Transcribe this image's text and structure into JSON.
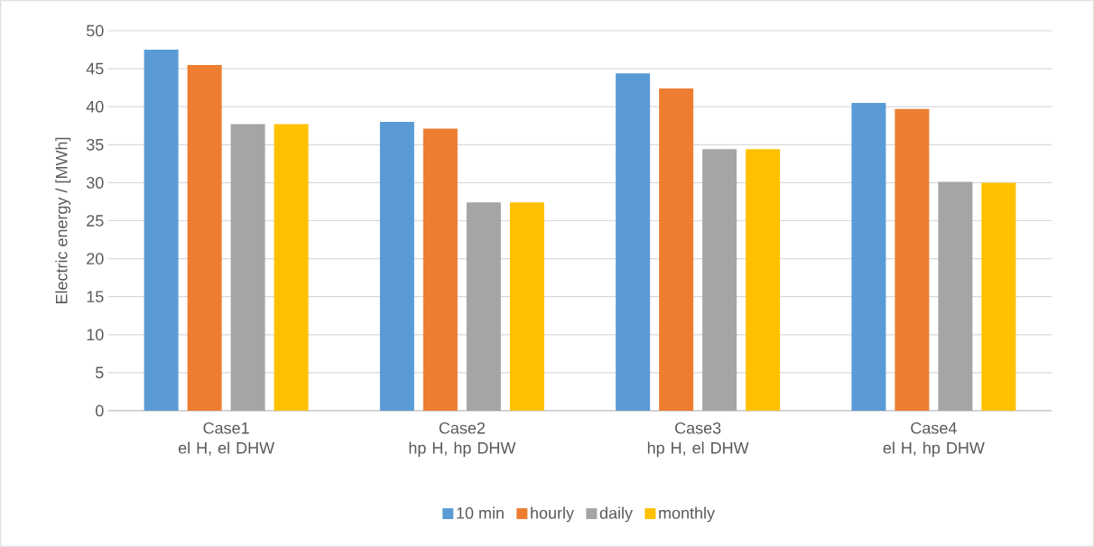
{
  "chart_data": {
    "type": "bar",
    "ylabel": "Electric energy / [MWh]",
    "categories": [
      "Case1\nel H, el DHW",
      "Case2\nhp H, hp DHW",
      "Case3\nhp H, el DHW",
      "Case4\nel H, hp DHW"
    ],
    "series": [
      {
        "name": "10 min",
        "color": "#5b9bd5",
        "values": [
          47.5,
          38.0,
          44.4,
          40.5
        ]
      },
      {
        "name": "hourly",
        "color": "#ed7d31",
        "values": [
          45.5,
          37.1,
          42.4,
          39.7
        ]
      },
      {
        "name": "daily",
        "color": "#a5a5a5",
        "values": [
          37.7,
          27.4,
          34.4,
          30.1
        ]
      },
      {
        "name": "monthly",
        "color": "#ffc000",
        "values": [
          37.7,
          27.4,
          34.4,
          30.0
        ]
      }
    ],
    "ylim": [
      0,
      50
    ],
    "yticks": [
      0,
      5,
      10,
      15,
      20,
      25,
      30,
      35,
      40,
      45,
      50
    ],
    "grid": "y",
    "legend": "bottom"
  }
}
